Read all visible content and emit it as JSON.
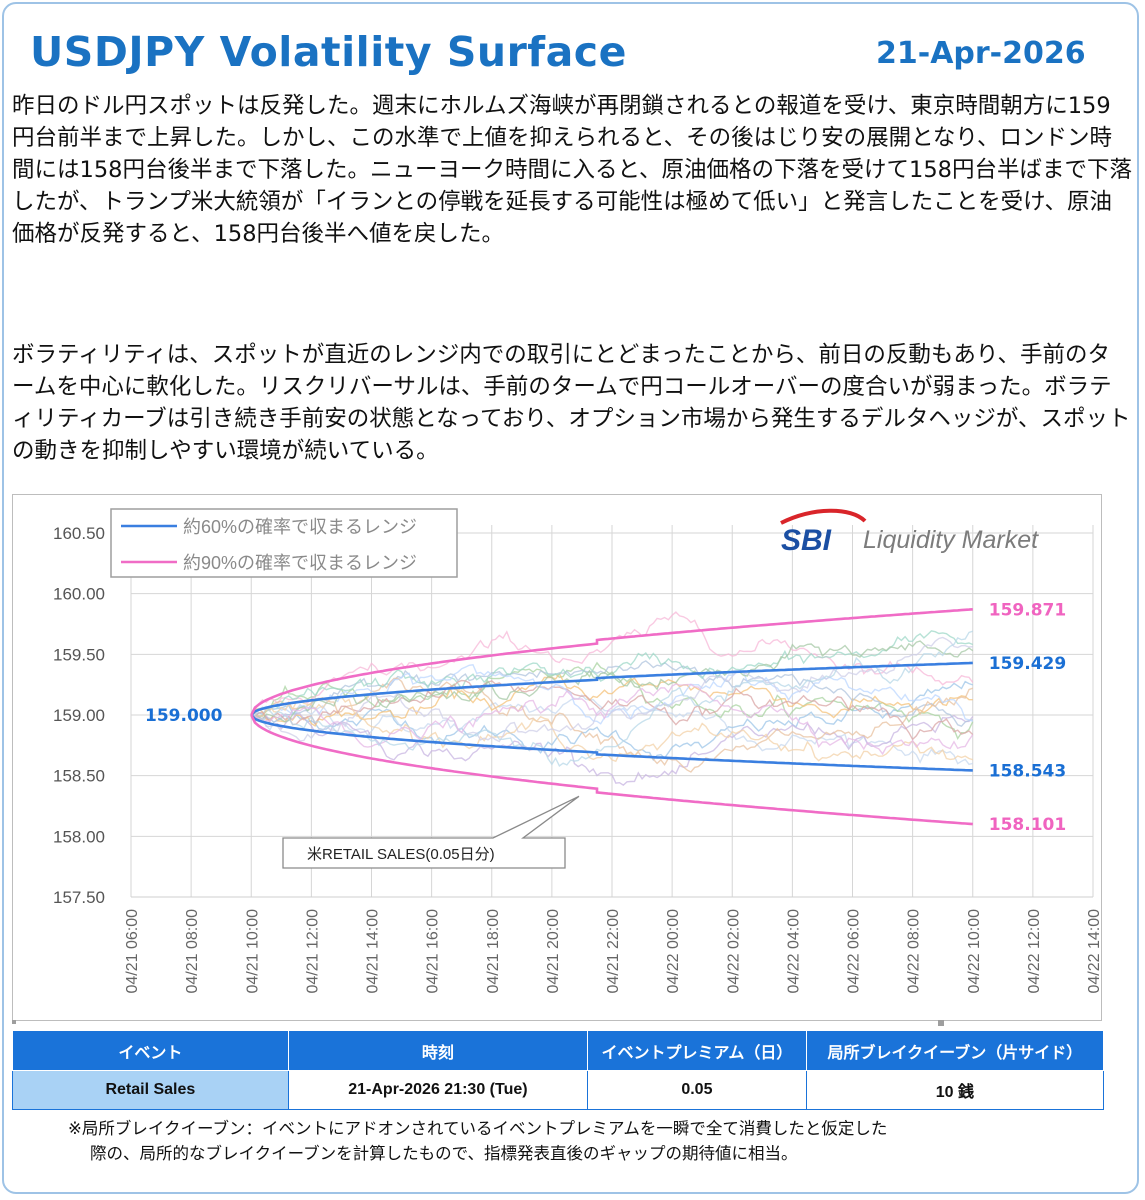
{
  "header": {
    "title": "USDJPY Volatility Surface",
    "date": "21-Apr-2026"
  },
  "commentary": {
    "paragraph1": "昨日のドル円スポットは反発した。週末にホルムズ海峡が再閉鎖されるとの報道を受け、東京時間朝方に159円台前半まで上昇した。しかし、この水準で上値を抑えられると、その後はじり安の展開となり、ロンドン時間には158円台後半まで下落した。ニューヨーク時間に入ると、原油価格の下落を受けて158円台半ばまで下落したが、トランプ米大統領が「イランとの停戦を延長する可能性は極めて低い」と発言したことを受け、原油価格が反発すると、158円台後半へ値を戻した。",
    "paragraph2": "ボラティリティは、スポットが直近のレンジ内での取引にとどまったことから、前日の反動もあり、手前のタームを中心に軟化した。リスクリバーサルは、手前のタームで円コールオーバーの度合いが弱まった。ボラティリティカーブは引き続き手前安の状態となっており、オプション市場から発生するデルタヘッジが、スポットの動きを抑制しやすい環境が続いている。"
  },
  "chart_data": {
    "type": "line",
    "title": "",
    "xlabel": "",
    "ylabel": "",
    "ylim": [
      157.5,
      160.5
    ],
    "yticks": [
      "160.50",
      "160.00",
      "159.50",
      "159.00",
      "158.50",
      "158.00",
      "157.50"
    ],
    "xticks": [
      "04/21 06:00",
      "04/21 08:00",
      "04/21 10:00",
      "04/21 12:00",
      "04/21 14:00",
      "04/21 16:00",
      "04/21 18:00",
      "04/21 20:00",
      "04/21 22:00",
      "04/22 00:00",
      "04/22 02:00",
      "04/22 04:00",
      "04/22 06:00",
      "04/22 08:00",
      "04/22 10:00",
      "04/22 12:00",
      "04/22 14:00"
    ],
    "start_hour": 4,
    "end_hour": 28,
    "event_hour": 15.5,
    "spot": 159.0,
    "spot_label": "159.000",
    "series": [
      {
        "name": "約60%の確率で収まるレンジ",
        "color": "#3a7fe0",
        "upper_end": 159.429,
        "lower_end": 158.543,
        "upper_label": "159.429",
        "lower_label": "158.543"
      },
      {
        "name": "約90%の確率で収まるレンジ",
        "color": "#f06cc6",
        "upper_end": 159.871,
        "lower_end": 158.101,
        "upper_label": "159.871",
        "lower_label": "158.101"
      }
    ],
    "annotation": "米RETAIL SALES(0.05日分)",
    "logo": {
      "brand": "SBI",
      "text": "Liquidity Market"
    },
    "simulated_path_colors": [
      "#9ec5e8",
      "#c7d8ef",
      "#a8d3a0",
      "#f4c27a",
      "#f7b8d8",
      "#c8b6e2",
      "#b0c4de",
      "#e8c2a0",
      "#9fd8c8",
      "#d9a6a6",
      "#bcd7ff",
      "#f3d2a8",
      "#a6c8a6",
      "#cfcfe8",
      "#e6b8e6",
      "#b8d8e8"
    ]
  },
  "event_table": {
    "headers": [
      "イベント",
      "時刻",
      "イベントプレミアム（日）",
      "局所ブレイクイーブン（片サイド）"
    ],
    "rows": [
      [
        "Retail Sales",
        "21-Apr-2026 21:30 (Tue)",
        "0.05",
        "10 銭"
      ]
    ]
  },
  "footnote": {
    "line1": "※局所ブレイクイーブン：イベントにアドオンされているイベントプレミアムを一瞬で全て消費したと仮定した",
    "line2": "際の、局所的なブレイクイーブンを計算したもので、指標発表直後のギャップの期待値に相当。"
  }
}
